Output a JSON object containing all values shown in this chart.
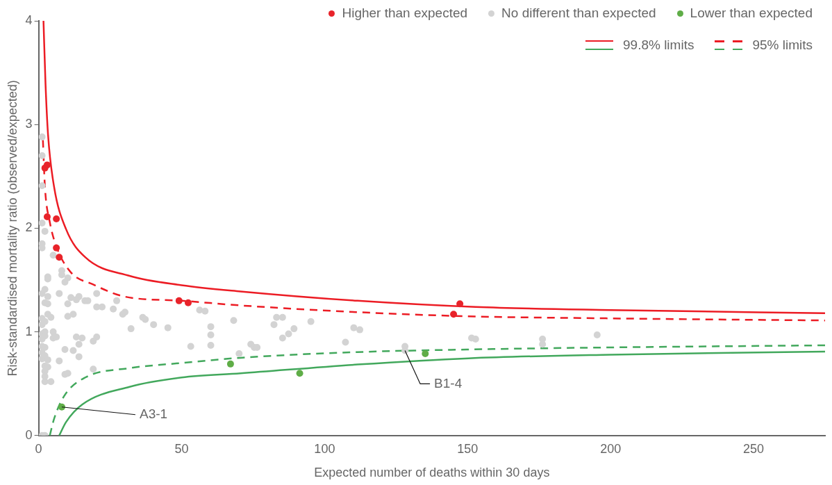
{
  "chart_data": {
    "type": "scatter",
    "xlabel": "Expected number of deaths within 30 days",
    "ylabel": "Risk-standardised mortality ratio (observed/expected)",
    "xlim": [
      0,
      275
    ],
    "xticks": [
      0,
      50,
      100,
      150,
      200,
      250
    ],
    "ylim": [
      0,
      4
    ],
    "yticks": [
      0,
      1,
      2,
      3,
      4
    ],
    "grid": false,
    "legend": "top right",
    "annotations": [
      {
        "text": "A3-1",
        "x": 8.1,
        "y": 0.275
      },
      {
        "text": "B1-4",
        "x": 128.1,
        "y": 0.82
      }
    ],
    "series": [
      {
        "name": "Higher than expected",
        "type": "scatter",
        "marker": "circle",
        "color": "#e8232a",
        "x": [
          2.2,
          3.0,
          3.0,
          6.2,
          6.2,
          7.2,
          49.1,
          52.3,
          147.3,
          145.1
        ],
        "values": [
          2.58,
          2.61,
          2.11,
          2.09,
          1.81,
          1.72,
          1.3,
          1.28,
          1.27,
          1.17
        ]
      },
      {
        "name": "No different than expected",
        "type": "scatter",
        "marker": "circle",
        "color": "#d3d3d3",
        "x": [
          1.2,
          1.2,
          1.2,
          1.2,
          2.2,
          1.2,
          1.2,
          5.1,
          8.1,
          8.1,
          3.2,
          3.2,
          10.2,
          9.2,
          2.2,
          1.2,
          3.2,
          7.2,
          11.3,
          14.1,
          13.2,
          16.2,
          17.2,
          20.3,
          2.2,
          3.2,
          10.2,
          20.3,
          22.2,
          27.3,
          26.1,
          29.4,
          30.2,
          12.1,
          10.2,
          3.2,
          4.3,
          1.2,
          2.2,
          1.2,
          2.2,
          5.1,
          1.2,
          2.2,
          5.1,
          6.2,
          1.2,
          13.2,
          15.2,
          20.3,
          19.1,
          14.1,
          1.2,
          2.2,
          9.2,
          12.1,
          1.2,
          2.2,
          14.1,
          1.2,
          3.2,
          7.2,
          2.2,
          3.2,
          2.2,
          2.2,
          9.2,
          10.2,
          19.1,
          2.2,
          4.3,
          1.2,
          2.2,
          32.3,
          36.4,
          37.3,
          40.2,
          45.2,
          53.2,
          56.3,
          58.2,
          60.2,
          60.2,
          60.2,
          68.2,
          70.1,
          74.2,
          75.4,
          76.4,
          82.3,
          83.2,
          85.3,
          85.3,
          87.4,
          89.3,
          95.2,
          107.3,
          110.2,
          112.3,
          128.1,
          128.1,
          151.4,
          152.8,
          176.2,
          176.2,
          195.3
        ],
        "values": [
          2.88,
          2.7,
          2.41,
          2.05,
          1.97,
          1.85,
          1.81,
          1.74,
          1.59,
          1.55,
          1.53,
          1.51,
          1.52,
          1.48,
          1.41,
          1.37,
          1.34,
          1.37,
          1.33,
          1.34,
          1.31,
          1.3,
          1.3,
          1.37,
          1.28,
          1.27,
          1.27,
          1.24,
          1.24,
          1.3,
          1.22,
          1.17,
          1.19,
          1.17,
          1.15,
          1.17,
          1.14,
          1.13,
          1.1,
          1.07,
          1.0,
          1.0,
          0.98,
          0.96,
          0.94,
          0.95,
          0.93,
          0.95,
          0.94,
          0.95,
          0.91,
          0.88,
          0.86,
          0.85,
          0.83,
          0.82,
          0.8,
          0.77,
          0.76,
          0.74,
          0.73,
          0.72,
          0.67,
          0.66,
          0.62,
          0.57,
          0.59,
          0.6,
          0.64,
          0.52,
          0.52,
          0.0,
          0.0,
          1.03,
          1.14,
          1.12,
          1.07,
          1.04,
          0.86,
          1.21,
          1.2,
          1.05,
          0.97,
          0.87,
          1.11,
          0.79,
          0.88,
          0.85,
          0.85,
          1.07,
          1.14,
          1.14,
          0.94,
          0.98,
          1.03,
          1.1,
          0.9,
          1.04,
          1.02,
          0.86,
          0.82,
          0.94,
          0.93,
          0.93,
          0.88,
          0.97
        ]
      },
      {
        "name": "Lower than expected",
        "type": "scatter",
        "marker": "circle",
        "color": "#5fad47",
        "x": [
          8.1,
          67.1,
          91.3,
          135.2
        ],
        "values": [
          0.275,
          0.69,
          0.6,
          0.79
        ]
      },
      {
        "name": "99.8% limits",
        "type": "line",
        "marker": "none",
        "line_style": "solid",
        "color": "#ec1c24",
        "x": [
          1.7,
          2.4,
          3.3,
          5.4,
          9.6,
          16.3,
          31.8,
          50,
          70.6,
          111.5,
          152.8,
          200,
          275
        ],
        "values": [
          4.0,
          3.4,
          2.9,
          2.4,
          1.99,
          1.72,
          1.54,
          1.45,
          1.39,
          1.3,
          1.24,
          1.21,
          1.18
        ]
      },
      {
        "type": "line",
        "marker": "none",
        "line_style": "solid",
        "color": "#42a85c",
        "x": [
          7.2,
          9.6,
          15.3,
          31.8,
          50,
          70.6,
          111.5,
          150.3,
          200,
          275
        ],
        "values": [
          0,
          0.13,
          0.3,
          0.47,
          0.56,
          0.6,
          0.685,
          0.745,
          0.78,
          0.81
        ]
      },
      {
        "name": "95% limits",
        "type": "line",
        "marker": "none",
        "line_style": "dashed",
        "color": "#ec1c24",
        "x": [
          1.5,
          2.2,
          3.9,
          6.4,
          11.4,
          18.8,
          30.1,
          50,
          70.6,
          111.5,
          150.3,
          200,
          275
        ],
        "values": [
          2.85,
          2.4,
          2.06,
          1.81,
          1.57,
          1.46,
          1.34,
          1.3,
          1.255,
          1.19,
          1.15,
          1.13,
          1.11
        ]
      },
      {
        "type": "line",
        "marker": "none",
        "line_style": "dashed",
        "color": "#42a85c",
        "x": [
          3.9,
          5.4,
          8.9,
          16.3,
          31.8,
          50,
          70.6,
          111.5,
          150.3,
          200,
          275
        ],
        "values": [
          0,
          0.16,
          0.38,
          0.56,
          0.65,
          0.7,
          0.75,
          0.805,
          0.83,
          0.85,
          0.87
        ]
      }
    ]
  }
}
